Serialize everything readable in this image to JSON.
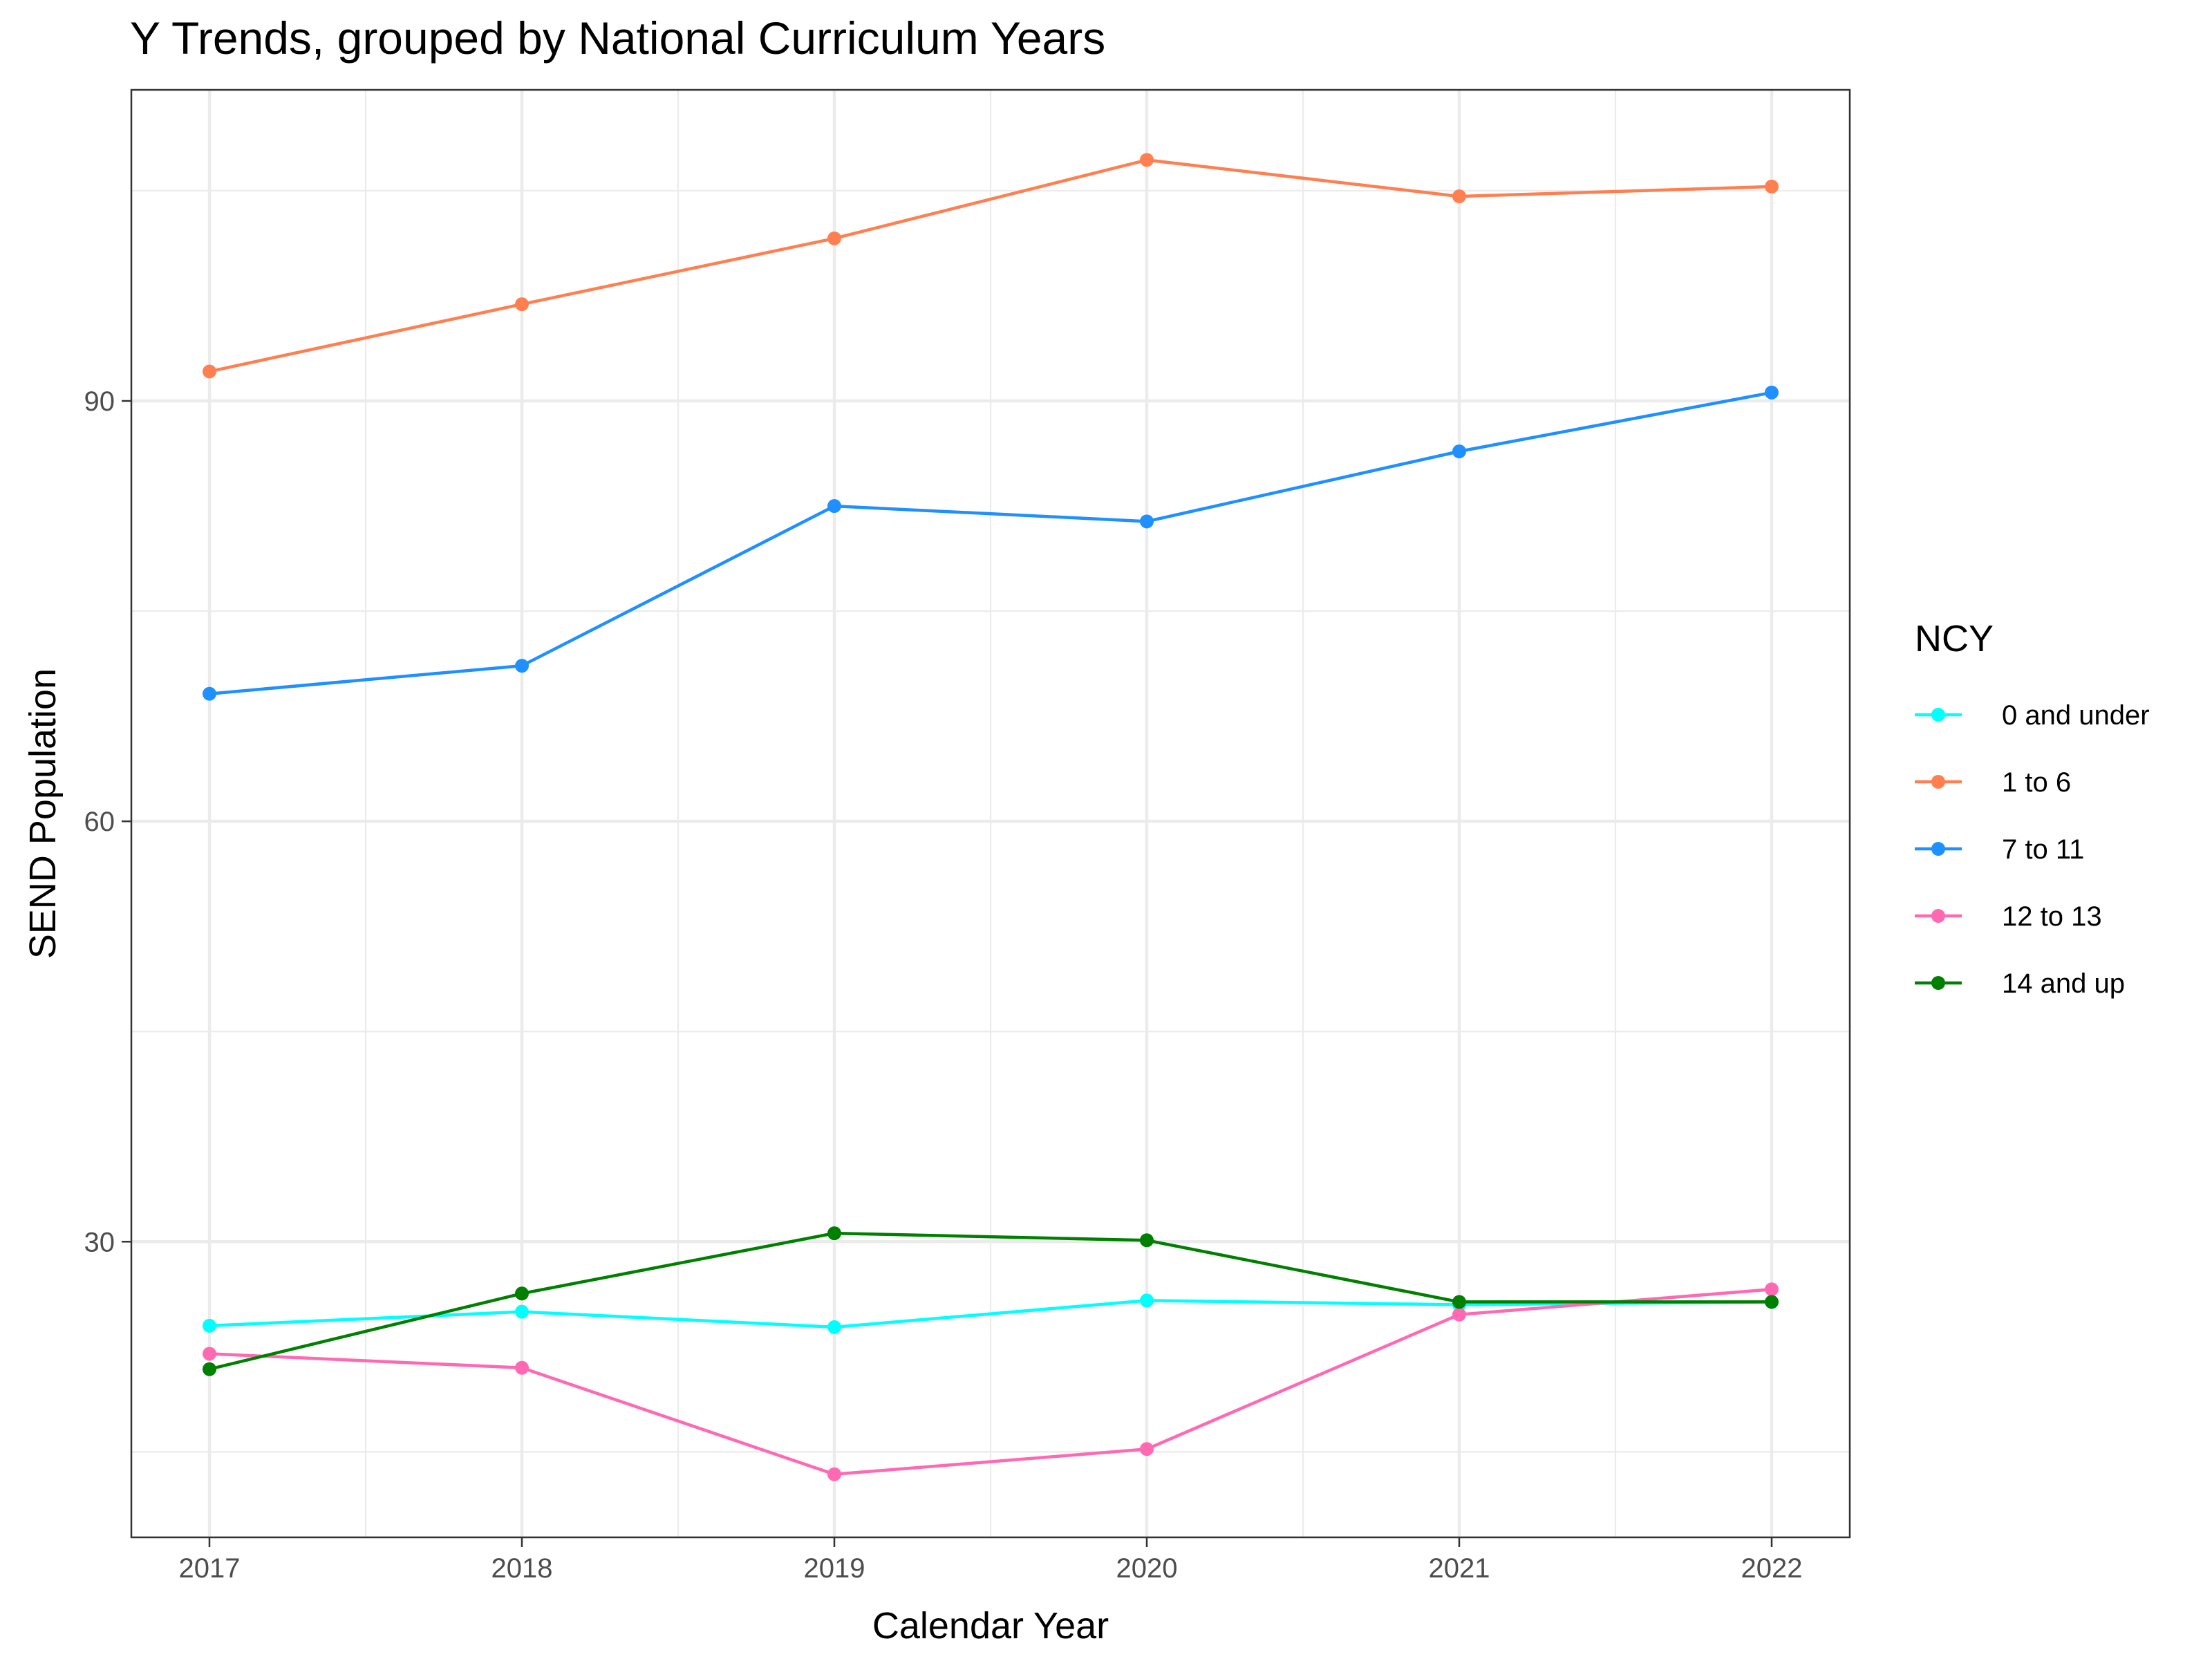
{
  "chart_data": {
    "type": "line",
    "title": "Y Trends, grouped by National Curriculum Years",
    "xlabel": "Calendar Year",
    "ylabel": "SEND Population",
    "x": [
      2017,
      2018,
      2019,
      2020,
      2021,
      2022
    ],
    "x_ticks": [
      "2017",
      "2018",
      "2019",
      "2020",
      "2021",
      "2022"
    ],
    "y_ticks": [
      30,
      60,
      90
    ],
    "xlim": [
      2016.75,
      2022.25
    ],
    "ylim": [
      8.9,
      112.2
    ],
    "grid": true,
    "legend": {
      "title": "NCY",
      "position": "right"
    },
    "series": [
      {
        "name": "0 and under",
        "color": "#00FFFF",
        "values": [
          24,
          25,
          23.9,
          25.8,
          25.5,
          25.7
        ]
      },
      {
        "name": "1 to 6",
        "color": "#FF7F50",
        "values": [
          92.1,
          96.9,
          101.6,
          107.2,
          104.6,
          105.3
        ]
      },
      {
        "name": "7 to 11",
        "color": "#1E90FF",
        "values": [
          69.1,
          71.1,
          82.5,
          81.4,
          86.4,
          90.6
        ]
      },
      {
        "name": "12 to 13",
        "color": "#FF69B4",
        "values": [
          22,
          21,
          13.4,
          15.2,
          24.8,
          26.6
        ]
      },
      {
        "name": "14 and up",
        "color": "#008000",
        "values": [
          20.9,
          26.3,
          30.6,
          30.1,
          25.7,
          25.7
        ]
      }
    ]
  }
}
